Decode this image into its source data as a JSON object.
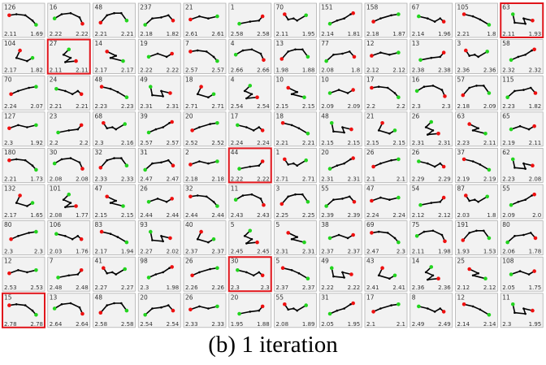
{
  "caption": "(b) 1 iteration",
  "colors": {
    "panel_bg": "#f2f2f2",
    "panel_border": "#b0b0b0",
    "highlight": "#e0151b",
    "line": "#000000",
    "start_point": "#22d41e",
    "end_point": "#ee1010"
  },
  "grid": {
    "rows": 9,
    "cols": 12
  },
  "panels": [
    {
      "id": "126",
      "l": "2.11",
      "r": "1.69"
    },
    {
      "id": "16",
      "l": "2.22",
      "r": "2.22"
    },
    {
      "id": "48",
      "l": "2.21",
      "r": "2.21"
    },
    {
      "id": "237",
      "l": "2.18",
      "r": "1.82"
    },
    {
      "id": "21",
      "l": "2.61",
      "r": "2.61"
    },
    {
      "id": "1",
      "l": "2.58",
      "r": "2.58"
    },
    {
      "id": "70",
      "l": "2.11",
      "r": "1.95"
    },
    {
      "id": "151",
      "l": "2.14",
      "r": "1.81"
    },
    {
      "id": "158",
      "l": "2.18",
      "r": "1.87"
    },
    {
      "id": "67",
      "l": "2.14",
      "r": "1.96"
    },
    {
      "id": "105",
      "l": "2.21",
      "r": "1.8"
    },
    {
      "id": "63",
      "l": "2.11",
      "r": "1.93",
      "highlight": true
    },
    {
      "id": "104",
      "l": "2.17",
      "r": "1.82"
    },
    {
      "id": "27",
      "l": "2.11",
      "r": "2.11",
      "highlight": true
    },
    {
      "id": "14",
      "l": "2.17",
      "r": "2.17"
    },
    {
      "id": "19",
      "l": "2.22",
      "r": "2.22"
    },
    {
      "id": "7",
      "l": "2.57",
      "r": "2.57"
    },
    {
      "id": "4",
      "l": "2.66",
      "r": "2.66"
    },
    {
      "id": "13",
      "l": "1.98",
      "r": "1.88"
    },
    {
      "id": "77",
      "l": "2.08",
      "r": "1.8"
    },
    {
      "id": "12",
      "l": "2.12",
      "r": "2.12"
    },
    {
      "id": "13",
      "l": "2.38",
      "r": "2.38"
    },
    {
      "id": "3",
      "l": "2.36",
      "r": "2.36"
    },
    {
      "id": "58",
      "l": "2.32",
      "r": "2.32"
    },
    {
      "id": "70",
      "l": "2.24",
      "r": "2.07"
    },
    {
      "id": "24",
      "l": "2.21",
      "r": "2.21"
    },
    {
      "id": "48",
      "l": "2.23",
      "r": "2.23"
    },
    {
      "id": "49",
      "l": "2.31",
      "r": "2.31"
    },
    {
      "id": "18",
      "l": "2.71",
      "r": "2.71"
    },
    {
      "id": "4",
      "l": "2.54",
      "r": "2.54"
    },
    {
      "id": "10",
      "l": "2.15",
      "r": "2.15"
    },
    {
      "id": "10",
      "l": "2.09",
      "r": "2.09"
    },
    {
      "id": "17",
      "l": "2.2",
      "r": "2.2"
    },
    {
      "id": "16",
      "l": "2.3",
      "r": "2.3"
    },
    {
      "id": "57",
      "l": "2.18",
      "r": "2.09"
    },
    {
      "id": "115",
      "l": "2.23",
      "r": "1.82"
    },
    {
      "id": "127",
      "l": "2.3",
      "r": "1.92"
    },
    {
      "id": "23",
      "l": "2.2",
      "r": "2.2"
    },
    {
      "id": "68",
      "l": "2.3",
      "r": "2.16"
    },
    {
      "id": "39",
      "l": "2.57",
      "r": "2.57"
    },
    {
      "id": "20",
      "l": "2.52",
      "r": "2.52"
    },
    {
      "id": "17",
      "l": "2.24",
      "r": "2.24"
    },
    {
      "id": "18",
      "l": "2.21",
      "r": "2.21"
    },
    {
      "id": "48",
      "l": "2.15",
      "r": "2.15"
    },
    {
      "id": "21",
      "l": "2.15",
      "r": "2.15"
    },
    {
      "id": "26",
      "l": "2.31",
      "r": "2.31"
    },
    {
      "id": "63",
      "l": "2.23",
      "r": "2.11"
    },
    {
      "id": "65",
      "l": "2.19",
      "r": "2.11"
    },
    {
      "id": "180",
      "l": "2.21",
      "r": "1.73"
    },
    {
      "id": "30",
      "l": "2.08",
      "r": "2.08"
    },
    {
      "id": "32",
      "l": "2.33",
      "r": "2.33"
    },
    {
      "id": "31",
      "l": "2.47",
      "r": "2.47"
    },
    {
      "id": "2",
      "l": "2.18",
      "r": "2.18"
    },
    {
      "id": "44",
      "l": "2.22",
      "r": "2.22",
      "highlight": true
    },
    {
      "id": "1",
      "l": "2.71",
      "r": "2.71"
    },
    {
      "id": "20",
      "l": "2.31",
      "r": "2.31"
    },
    {
      "id": "26",
      "l": "2.1",
      "r": "2.1"
    },
    {
      "id": "26",
      "l": "2.29",
      "r": "2.29"
    },
    {
      "id": "37",
      "l": "2.19",
      "r": "2.19"
    },
    {
      "id": "62",
      "l": "2.23",
      "r": "2.08"
    },
    {
      "id": "132",
      "l": "2.17",
      "r": "1.65"
    },
    {
      "id": "101",
      "l": "2.08",
      "r": "1.77"
    },
    {
      "id": "47",
      "l": "2.15",
      "r": "2.15"
    },
    {
      "id": "26",
      "l": "2.44",
      "r": "2.44"
    },
    {
      "id": "32",
      "l": "2.44",
      "r": "2.44"
    },
    {
      "id": "11",
      "l": "2.43",
      "r": "2.43"
    },
    {
      "id": "3",
      "l": "2.25",
      "r": "2.25"
    },
    {
      "id": "55",
      "l": "2.39",
      "r": "2.39"
    },
    {
      "id": "47",
      "l": "2.24",
      "r": "2.24"
    },
    {
      "id": "54",
      "l": "2.12",
      "r": "2.12"
    },
    {
      "id": "87",
      "l": "2.03",
      "r": "1.8"
    },
    {
      "id": "55",
      "l": "2.09",
      "r": "2.0"
    },
    {
      "id": "80",
      "l": "2.3",
      "r": "2.3"
    },
    {
      "id": "106",
      "l": "2.03",
      "r": "1.76"
    },
    {
      "id": "83",
      "l": "2.17",
      "r": "1.94"
    },
    {
      "id": "93",
      "l": "2.27",
      "r": "2.02"
    },
    {
      "id": "40",
      "l": "2.37",
      "r": "2.37"
    },
    {
      "id": "5",
      "l": "2.45",
      "r": "2.45"
    },
    {
      "id": "5",
      "l": "2.31",
      "r": "2.31"
    },
    {
      "id": "38",
      "l": "2.37",
      "r": "2.37"
    },
    {
      "id": "69",
      "l": "2.47",
      "r": "2.3"
    },
    {
      "id": "75",
      "l": "2.11",
      "r": "1.98"
    },
    {
      "id": "191",
      "l": "1.93",
      "r": "1.53"
    },
    {
      "id": "80",
      "l": "2.06",
      "r": "1.78"
    },
    {
      "id": "12",
      "l": "2.53",
      "r": "2.53"
    },
    {
      "id": "7",
      "l": "2.48",
      "r": "2.48"
    },
    {
      "id": "41",
      "l": "2.27",
      "r": "2.27"
    },
    {
      "id": "98",
      "l": "2.3",
      "r": "1.98"
    },
    {
      "id": "26",
      "l": "2.26",
      "r": "2.26"
    },
    {
      "id": "30",
      "l": "2.3",
      "r": "2.3",
      "highlight": true
    },
    {
      "id": "5",
      "l": "2.37",
      "r": "2.37"
    },
    {
      "id": "49",
      "l": "2.22",
      "r": "2.22"
    },
    {
      "id": "43",
      "l": "2.41",
      "r": "2.41"
    },
    {
      "id": "14",
      "l": "2.36",
      "r": "2.36"
    },
    {
      "id": "25",
      "l": "2.12",
      "r": "2.12"
    },
    {
      "id": "108",
      "l": "2.05",
      "r": "1.75"
    },
    {
      "id": "15",
      "l": "2.78",
      "r": "2.78",
      "highlight": true
    },
    {
      "id": "13",
      "l": "2.64",
      "r": "2.64"
    },
    {
      "id": "48",
      "l": "2.58",
      "r": "2.58"
    },
    {
      "id": "20",
      "l": "2.54",
      "r": "2.54"
    },
    {
      "id": "26",
      "l": "2.33",
      "r": "2.33"
    },
    {
      "id": "20",
      "l": "1.95",
      "r": "1.88"
    },
    {
      "id": "55",
      "l": "2.08",
      "r": "1.89"
    },
    {
      "id": "31",
      "l": "2.05",
      "r": "1.95"
    },
    {
      "id": "17",
      "l": "2.1",
      "r": "2.1"
    },
    {
      "id": "8",
      "l": "2.49",
      "r": "2.49"
    },
    {
      "id": "12",
      "l": "2.14",
      "r": "2.14"
    },
    {
      "id": "11",
      "l": "2.3",
      "r": "1.95"
    }
  ]
}
